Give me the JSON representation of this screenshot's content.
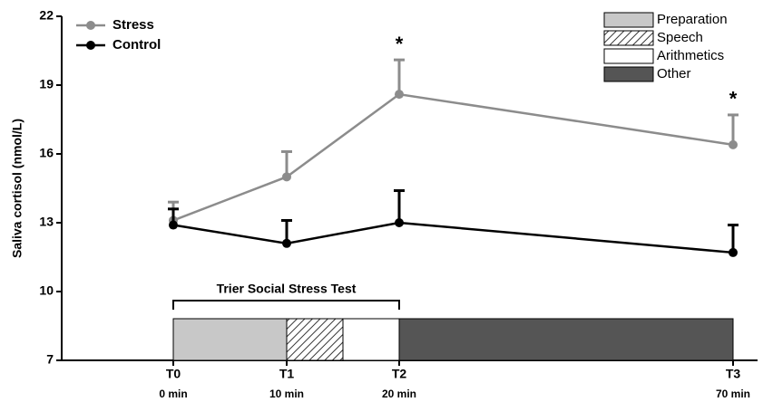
{
  "chart_data": {
    "type": "line",
    "y_label": "Saliva cortisol (nmol/L)",
    "categories": [
      "T0",
      "T1",
      "T2",
      "T3"
    ],
    "x_sublabels": [
      "0 min",
      "10 min",
      "20 min",
      "70 min"
    ],
    "ylim": [
      7,
      22
    ],
    "yticks": [
      7,
      10,
      13,
      16,
      19,
      22
    ],
    "series": [
      {
        "name": "Stress",
        "color": "#8c8c8c",
        "values": [
          13.1,
          15.0,
          18.6,
          16.4
        ],
        "errors": [
          0.8,
          1.1,
          1.5,
          1.3
        ]
      },
      {
        "name": "Control",
        "color": "#000000",
        "values": [
          12.9,
          12.1,
          13.0,
          11.7
        ],
        "errors": [
          0.7,
          1.0,
          1.4,
          1.2
        ]
      }
    ],
    "annotations": [
      {
        "category": 2,
        "text": "*"
      },
      {
        "category": 3,
        "text": "*"
      }
    ],
    "bracket": {
      "label": "Trier Social Stress Test",
      "from": 0,
      "to": 20
    },
    "phases": [
      {
        "name": "Preparation",
        "start": 0,
        "end": 10,
        "color": "#c8c8c8"
      },
      {
        "name": "Speech",
        "start": 10,
        "end": 15,
        "color": "hatch"
      },
      {
        "name": "Arithmetics",
        "start": 15,
        "end": 20,
        "color": "#ffffff"
      },
      {
        "name": "Other",
        "start": 20,
        "end": 70,
        "color": "#555555"
      }
    ]
  }
}
